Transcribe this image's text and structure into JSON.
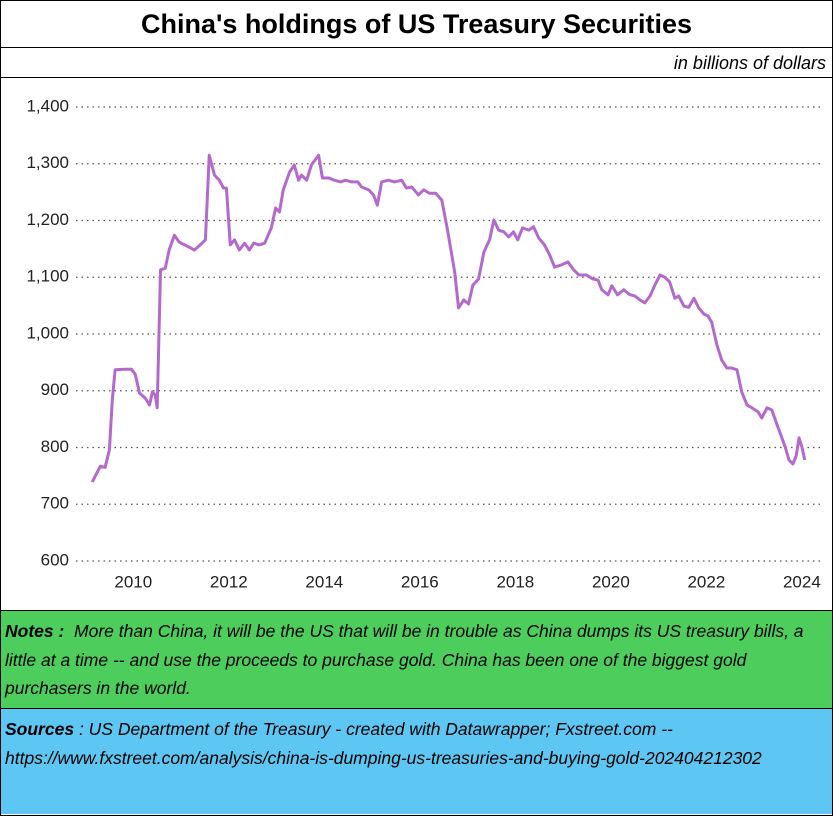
{
  "chart_data": {
    "type": "line",
    "title": "China's holdings of US Treasury Securities",
    "subtitle": "in billions of dollars",
    "xlim": [
      2008.8,
      2024.4
    ],
    "xticks": [
      2010,
      2012,
      2014,
      2016,
      2018,
      2020,
      2022,
      2024
    ],
    "ylim": [
      600,
      1400
    ],
    "yticks": [
      600,
      700,
      800,
      900,
      {
        "value": 1000,
        "label": "1,000"
      },
      {
        "value": 1100,
        "label": "1,100"
      },
      {
        "value": 1200,
        "label": "1,200"
      },
      {
        "value": 1300,
        "label": "1,300"
      },
      {
        "value": 1400,
        "label": "1,400"
      }
    ],
    "grid": true,
    "series": [
      {
        "color": "#b469cc",
        "x": [
          2009.14,
          2009.31,
          2009.41,
          2009.5,
          2009.56,
          2009.62,
          2009.83,
          2009.96,
          2010.04,
          2010.13,
          2010.25,
          2010.34,
          2010.4,
          2010.46,
          2010.5,
          2010.57,
          2010.67,
          2010.75,
          2010.86,
          2010.96,
          2011.17,
          2011.28,
          2011.4,
          2011.51,
          2011.59,
          2011.7,
          2011.8,
          2011.89,
          2011.95,
          2012.03,
          2012.12,
          2012.22,
          2012.33,
          2012.43,
          2012.52,
          2012.64,
          2012.75,
          2012.89,
          2012.98,
          2013.06,
          2013.14,
          2013.27,
          2013.37,
          2013.46,
          2013.52,
          2013.63,
          2013.73,
          2013.88,
          2013.96,
          2014.09,
          2014.21,
          2014.34,
          2014.44,
          2014.57,
          2014.7,
          2014.78,
          2014.93,
          2015.03,
          2015.11,
          2015.2,
          2015.34,
          2015.47,
          2015.62,
          2015.72,
          2015.83,
          2015.97,
          2016.08,
          2016.2,
          2016.33,
          2016.46,
          2016.58,
          2016.73,
          2016.81,
          2016.92,
          2017.02,
          2017.11,
          2017.23,
          2017.34,
          2017.46,
          2017.55,
          2017.65,
          2017.76,
          2017.86,
          2017.96,
          2018.05,
          2018.15,
          2018.28,
          2018.38,
          2018.49,
          2018.61,
          2018.72,
          2018.82,
          2018.97,
          2019.1,
          2019.22,
          2019.33,
          2019.49,
          2019.62,
          2019.73,
          2019.81,
          2019.94,
          2020.02,
          2020.14,
          2020.27,
          2020.38,
          2020.5,
          2020.61,
          2020.71,
          2020.82,
          2020.92,
          2021.03,
          2021.13,
          2021.23,
          2021.34,
          2021.42,
          2021.53,
          2021.63,
          2021.74,
          2021.84,
          2021.95,
          2022.03,
          2022.11,
          2022.22,
          2022.32,
          2022.43,
          2022.53,
          2022.64,
          2022.74,
          2022.85,
          2022.95,
          2023.08,
          2023.16,
          2023.27,
          2023.37,
          2023.48,
          2023.56,
          2023.65,
          2023.73,
          2023.81,
          2023.88,
          2023.94,
          2024.0,
          2024.06
        ],
        "values": [
          739,
          767,
          765,
          796,
          884,
          937,
          938,
          938,
          929,
          896,
          887,
          875,
          898,
          892,
          870,
          1113,
          1116,
          1148,
          1174,
          1162,
          1153,
          1148,
          1157,
          1166,
          1315,
          1280,
          1271,
          1257,
          1257,
          1157,
          1166,
          1148,
          1160,
          1148,
          1160,
          1157,
          1160,
          1187,
          1222,
          1215,
          1254,
          1285,
          1298,
          1271,
          1280,
          1271,
          1298,
          1315,
          1275,
          1275,
          1271,
          1268,
          1271,
          1268,
          1268,
          1259,
          1254,
          1245,
          1227,
          1268,
          1271,
          1268,
          1271,
          1257,
          1259,
          1245,
          1254,
          1248,
          1248,
          1236,
          1183,
          1109,
          1046,
          1060,
          1053,
          1086,
          1097,
          1144,
          1166,
          1201,
          1183,
          1180,
          1171,
          1180,
          1166,
          1187,
          1183,
          1189,
          1169,
          1157,
          1139,
          1118,
          1122,
          1127,
          1113,
          1104,
          1104,
          1097,
          1095,
          1078,
          1069,
          1085,
          1069,
          1078,
          1070,
          1067,
          1060,
          1055,
          1067,
          1086,
          1104,
          1100,
          1092,
          1063,
          1067,
          1049,
          1047,
          1063,
          1046,
          1035,
          1032,
          1021,
          981,
          954,
          940,
          940,
          937,
          898,
          875,
          870,
          863,
          852,
          870,
          866,
          840,
          822,
          801,
          778,
          771,
          785,
          817,
          801,
          778
        ]
      }
    ]
  },
  "notes": {
    "label": "Notes :",
    "text": "More than China, it will be the US that will be in trouble as China dumps its US treasury bills, a little at a time -- and use the proceeds to purchase gold.  China has been one of the biggest gold purchasers in the world."
  },
  "sources": {
    "label": "Sources",
    "text": ": US Department of the Treasury - created with Datawrapper; Fxstreet.com -- https://www.fxstreet.com/analysis/china-is-dumping-us-treasuries-and-buying-gold-202404212302"
  }
}
